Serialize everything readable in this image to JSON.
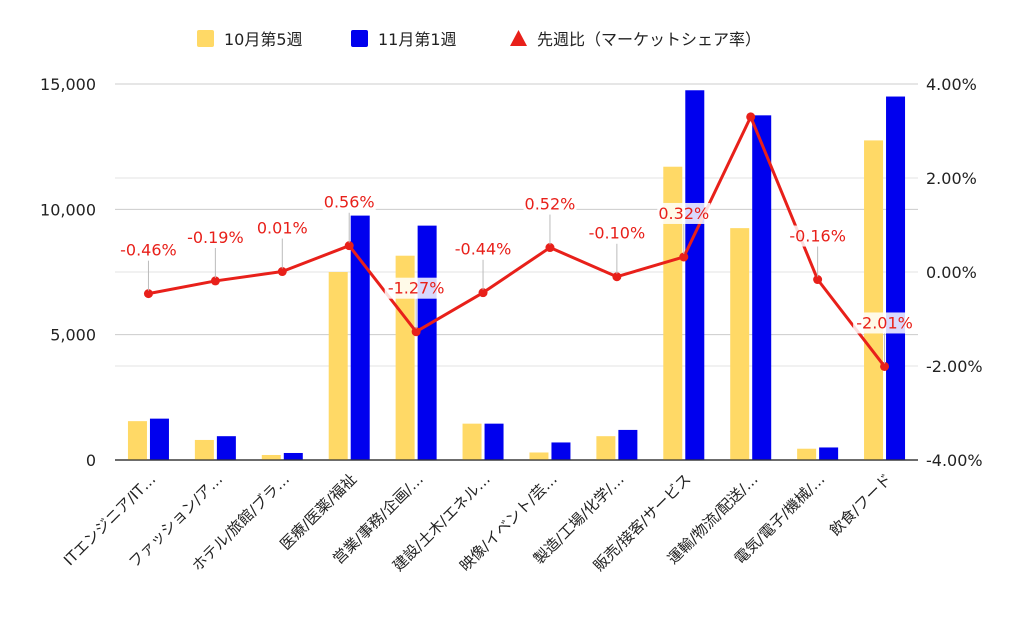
{
  "chart_data": {
    "type": "bar",
    "categories": [
      "ITエンジニア/IT…",
      "ファッション/ア…",
      "ホテル/旅館/ブラ…",
      "医療/医薬/福祉",
      "営業/事務/企画/…",
      "建設/土木/エネル…",
      "映像/イベント/芸…",
      "製造/工場/化学/…",
      "販売/接客/サービス",
      "運輸/物流/配送/…",
      "電気/電子/機械/…",
      "飲食/フード"
    ],
    "series": [
      {
        "name": "10月第5週",
        "type": "bar",
        "axis": "left",
        "color": "#ffd966",
        "values": [
          1550,
          800,
          200,
          7500,
          8150,
          1450,
          300,
          950,
          11700,
          9250,
          450,
          12750
        ]
      },
      {
        "name": "11月第1週",
        "type": "bar",
        "axis": "left",
        "color": "#0000ee",
        "values": [
          1650,
          950,
          280,
          9750,
          9350,
          1450,
          700,
          1200,
          14750,
          13750,
          500,
          14500
        ]
      },
      {
        "name": "先週比（マーケットシェア率）",
        "type": "line",
        "axis": "right",
        "color": "#e8201a",
        "values": [
          -0.46,
          -0.19,
          0.01,
          0.56,
          -1.27,
          -0.44,
          0.52,
          -0.1,
          0.32,
          3.3,
          -0.16,
          -2.01
        ],
        "labels": [
          "-0.46%",
          "-0.19%",
          "0.01%",
          "0.56%",
          "-1.27%",
          "-0.44%",
          "0.52%",
          "-0.10%",
          "0.32%",
          "",
          "-0.16%",
          "-2.01%"
        ]
      }
    ],
    "y_left": {
      "ylim": [
        0,
        15000
      ],
      "ticks": [
        0,
        5000,
        10000,
        15000
      ],
      "tick_labels": [
        "0",
        "5,000",
        "10,000",
        "15,000"
      ]
    },
    "y_right": {
      "ylim": [
        -4,
        4
      ],
      "ticks": [
        -4,
        -2,
        0,
        2,
        4
      ],
      "tick_labels": [
        "-4.00%",
        "-2.00%",
        "0.00%",
        "2.00%",
        "4.00%"
      ]
    },
    "legend_position": "top-center",
    "grid": true
  }
}
